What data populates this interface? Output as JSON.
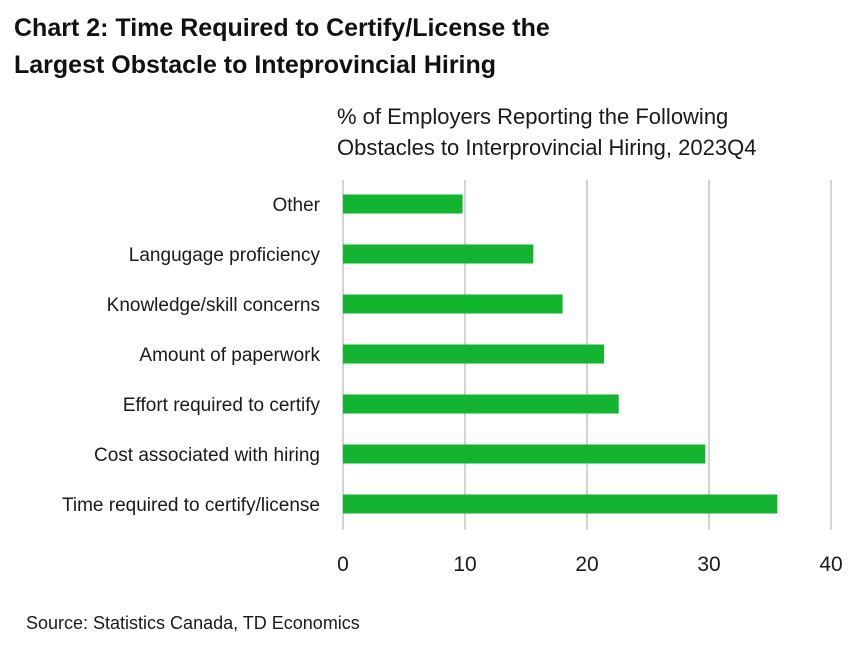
{
  "title_lines": [
    "Chart 2: Time Required to Certify/License the",
    "Largest Obstacle to Inteprovincial Hiring"
  ],
  "subtitle_lines": [
    "% of Employers Reporting the Following",
    "Obstacles to Interprovincial Hiring, 2023Q4"
  ],
  "source": "Source: Statistics Canada, TD Economics",
  "colors": {
    "bar": "#13b530",
    "grid": "#d3d3d3"
  },
  "chart_data": {
    "type": "bar",
    "orientation": "horizontal",
    "title": "Chart 2: Time Required to Certify/License the Largest Obstacle to Inteprovincial Hiring",
    "subtitle": "% of Employers Reporting the Following Obstacles to Interprovincial Hiring, 2023Q4",
    "categories": [
      "Other",
      "Langugage proficiency",
      "Knowledge/skill concerns",
      "Amount of paperwork",
      "Effort required to certify",
      "Cost associated with hiring",
      "Time required to certify/license"
    ],
    "values": [
      9.8,
      15.6,
      18.0,
      21.4,
      22.6,
      29.7,
      35.6
    ],
    "xlim": [
      0,
      40
    ],
    "xticks": [
      0,
      10,
      20,
      30,
      40
    ],
    "grid": true,
    "legend": "none"
  }
}
